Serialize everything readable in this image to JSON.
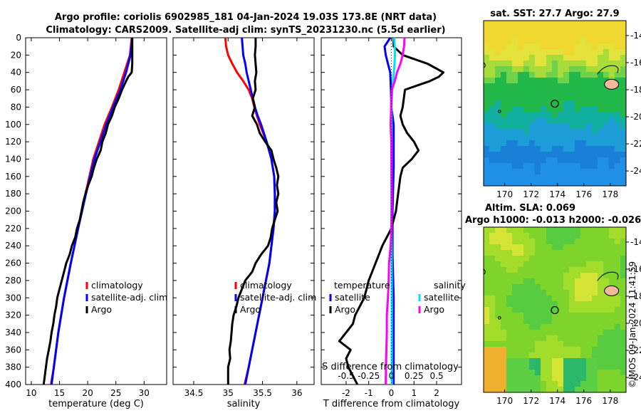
{
  "title_line1": "Argo profile: coriolis 6902985_181 04-Jan-2024 19.03S 173.8E (NRT data)",
  "title_line2": "Climatology: CARS2009. Satellite-adj clim: synTS_20231230.nc (5.5d earlier)",
  "stamp": "©IMOS 09-Jan-2024 11:41:59",
  "colors": {
    "climatology": "#ff0000",
    "satellite": "#0000ff",
    "argo": "#000000",
    "sal_satellite": "#00e0ff",
    "sal_argo": "#ff00ff"
  },
  "chart_data": [
    {
      "type": "line",
      "id": "temp",
      "xlabel": "temperature (deg C)",
      "ylabel": "",
      "xlim": [
        9,
        34
      ],
      "ylim": [
        400,
        0
      ],
      "xticks": [
        "10",
        "15",
        "20",
        "25",
        "30"
      ],
      "xtick_values": [
        10,
        15,
        20,
        25,
        30
      ],
      "yticks": [
        "0",
        "20",
        "40",
        "60",
        "80",
        "100",
        "120",
        "140",
        "160",
        "180",
        "200",
        "220",
        "240",
        "260",
        "280",
        "300",
        "320",
        "340",
        "360",
        "380",
        "400"
      ],
      "ytick_values": [
        0,
        20,
        40,
        60,
        80,
        100,
        120,
        140,
        160,
        180,
        200,
        220,
        240,
        260,
        280,
        300,
        320,
        340,
        360,
        380,
        400
      ],
      "legend": [
        "climatology",
        "satellite-adj. clim",
        "Argo"
      ],
      "series": [
        {
          "name": "climatology",
          "color": "#ff0000",
          "depth": [
            0,
            20,
            40,
            60,
            80,
            100,
            140,
            180,
            220,
            260,
            300,
            340,
            380,
            400
          ],
          "values": [
            27.8,
            27.5,
            26.5,
            25.5,
            24.3,
            23.0,
            21.0,
            19.6,
            18.3,
            17.0,
            15.8,
            14.8,
            14.0,
            13.5
          ]
        },
        {
          "name": "satellite-adj. clim",
          "color": "#0000ff",
          "depth": [
            0,
            20,
            40,
            60,
            80,
            100,
            140,
            180,
            220,
            260,
            300,
            340,
            380,
            400
          ],
          "values": [
            27.9,
            27.6,
            26.8,
            25.8,
            24.5,
            23.3,
            21.2,
            19.7,
            18.3,
            17.0,
            15.8,
            14.8,
            14.0,
            13.6
          ]
        },
        {
          "name": "Argo",
          "color": "#000000",
          "depth": [
            0,
            10,
            20,
            30,
            40,
            45,
            50,
            60,
            70,
            80,
            90,
            100,
            110,
            120,
            130,
            140,
            150,
            160,
            170,
            180,
            190,
            200,
            210,
            220,
            230,
            240,
            250,
            260,
            270,
            280,
            290,
            300,
            310,
            320,
            330,
            340,
            350,
            360,
            370,
            380,
            390,
            400
          ],
          "values": [
            27.9,
            27.9,
            27.9,
            27.9,
            27.8,
            27.2,
            26.8,
            26.1,
            25.5,
            24.8,
            24.3,
            23.6,
            23.2,
            22.6,
            22.3,
            21.6,
            21.1,
            20.7,
            20.1,
            19.6,
            19.2,
            18.9,
            18.6,
            18.1,
            17.8,
            17.2,
            16.8,
            16.2,
            15.8,
            15.4,
            15.0,
            14.6,
            14.4,
            14.1,
            13.9,
            13.6,
            13.4,
            13.1,
            12.8,
            12.6,
            12.4,
            12.2
          ]
        }
      ]
    },
    {
      "type": "line",
      "id": "sal",
      "xlabel": "salinity",
      "ylabel": "",
      "xlim": [
        34.2,
        36.25
      ],
      "ylim": [
        400,
        0
      ],
      "xticks": [
        "34.5",
        "35",
        "35.5",
        "36"
      ],
      "xtick_values": [
        34.5,
        35,
        35.5,
        36
      ],
      "legend": [
        "climatology",
        "satellite-adj. clim",
        "Argo"
      ],
      "series": [
        {
          "name": "climatology",
          "color": "#ff0000",
          "depth": [
            0,
            10,
            20,
            30,
            40,
            50,
            60,
            70,
            80,
            90,
            100,
            120,
            140,
            160,
            180,
            200,
            220,
            260,
            300,
            340,
            380,
            400
          ],
          "values": [
            34.96,
            34.97,
            35.0,
            35.06,
            35.13,
            35.22,
            35.3,
            35.35,
            35.38,
            35.42,
            35.46,
            35.56,
            35.63,
            35.67,
            35.68,
            35.68,
            35.66,
            35.6,
            35.5,
            35.4,
            35.3,
            35.24
          ]
        },
        {
          "name": "satellite-adj. clim",
          "color": "#0000ff",
          "depth": [
            0,
            10,
            20,
            30,
            40,
            50,
            60,
            70,
            80,
            90,
            100,
            120,
            140,
            160,
            180,
            200,
            220,
            260,
            300,
            340,
            380,
            400
          ],
          "values": [
            35.2,
            35.21,
            35.22,
            35.25,
            35.27,
            35.3,
            35.33,
            35.36,
            35.39,
            35.43,
            35.48,
            35.56,
            35.63,
            35.67,
            35.68,
            35.68,
            35.66,
            35.6,
            35.5,
            35.4,
            35.3,
            35.25
          ]
        },
        {
          "name": "Argo",
          "color": "#000000",
          "depth": [
            0,
            10,
            20,
            30,
            40,
            50,
            60,
            70,
            80,
            90,
            100,
            110,
            120,
            130,
            140,
            150,
            160,
            170,
            180,
            190,
            200,
            210,
            220,
            230,
            240,
            250,
            260,
            270,
            280,
            290,
            300,
            310,
            320,
            330,
            340,
            350,
            360,
            370,
            380,
            390,
            400
          ],
          "values": [
            35.4,
            35.4,
            35.39,
            35.4,
            35.41,
            35.39,
            35.4,
            35.36,
            35.39,
            35.35,
            35.42,
            35.46,
            35.54,
            35.63,
            35.66,
            35.7,
            35.73,
            35.71,
            35.73,
            35.7,
            35.72,
            35.68,
            35.64,
            35.62,
            35.58,
            35.48,
            35.4,
            35.35,
            35.25,
            35.2,
            35.15,
            35.12,
            35.08,
            35.06,
            35.05,
            35.04,
            35.02,
            35.03,
            35.0,
            35.0,
            35.0
          ]
        }
      ]
    },
    {
      "type": "line",
      "id": "diff",
      "xlabel": "T difference from climatology",
      "xlabel_top": "S difference from climatology",
      "ylabel": "",
      "xlim": [
        -3.1,
        3.1
      ],
      "ylim": [
        400,
        0
      ],
      "xticks": [
        "-2",
        "-1",
        "0",
        "1",
        "2"
      ],
      "xtick_values": [
        -2,
        -1,
        0,
        1,
        2
      ],
      "xticks_top": [
        "-0.5",
        "-0.25",
        "0",
        "0.25",
        "0.5"
      ],
      "xtick_values_top": [
        -2,
        -1,
        0,
        1,
        2
      ],
      "legend_temperature": {
        "title": "temperature",
        "items": [
          "satellite",
          "Argo"
        ]
      },
      "legend_salinity": {
        "title": "salinity",
        "items": [
          "satellite",
          "Argo"
        ]
      },
      "series": [
        {
          "name": "temperature satellite",
          "color": "#0000ff",
          "depth": [
            0,
            10,
            20,
            30,
            40,
            60,
            80,
            100,
            150,
            200,
            250,
            300,
            350,
            400
          ],
          "values": [
            -0.05,
            -0.3,
            -0.25,
            -0.15,
            -0.05,
            -0.02,
            0.0,
            0.1,
            0.1,
            0.05,
            0.05,
            0.1,
            0.1,
            0.1
          ]
        },
        {
          "name": "temperature Argo",
          "color": "#000000",
          "depth": [
            0,
            10,
            20,
            30,
            40,
            45,
            50,
            60,
            80,
            90,
            100,
            110,
            120,
            130,
            140,
            150,
            160,
            180,
            200,
            220,
            240,
            260,
            280,
            300,
            320,
            330,
            340,
            350,
            360,
            370,
            380,
            390,
            400
          ],
          "values": [
            0.1,
            0.1,
            0.5,
            1.6,
            2.3,
            2.1,
            1.7,
            0.6,
            0.5,
            0.4,
            0.5,
            0.7,
            1.0,
            1.2,
            0.9,
            0.5,
            0.4,
            0.3,
            0.2,
            0.0,
            -0.4,
            -0.7,
            -1.0,
            -1.2,
            -1.6,
            -1.7,
            -2.0,
            -2.3,
            -1.8,
            -2.0,
            -1.9,
            -1.7,
            -1.5
          ]
        },
        {
          "name": "salinity satellite",
          "color": "#00e0ff",
          "depth": [
            0,
            10,
            20,
            30,
            40,
            50,
            60,
            80,
            100,
            150,
            200,
            300,
            400
          ],
          "values": [
            0.12,
            0.15,
            0.16,
            0.14,
            0.11,
            0.07,
            0.04,
            0.01,
            0.0,
            0.0,
            0.0,
            0.02,
            0.02
          ]
        },
        {
          "name": "salinity Argo",
          "color": "#ff00ff",
          "depth": [
            0,
            10,
            20,
            30,
            40,
            50,
            60,
            70,
            80,
            90,
            100,
            110,
            120,
            140,
            160,
            180,
            200,
            220,
            240,
            260,
            280,
            300,
            320,
            340,
            360,
            380,
            400
          ],
          "values": [
            0.58,
            0.56,
            0.5,
            0.4,
            0.25,
            0.15,
            0.02,
            0.0,
            -0.01,
            -0.02,
            -0.03,
            -0.02,
            0.0,
            0.0,
            0.01,
            0.02,
            0.02,
            0.0,
            -0.03,
            -0.1,
            -0.12,
            -0.15,
            -0.2,
            -0.2,
            -0.22,
            -0.24,
            -0.25
          ]
        }
      ]
    },
    {
      "type": "heatmap",
      "id": "sst_map",
      "title": "sat. SST: 27.7 Argo: 27.9",
      "xlim": [
        168.4,
        179.2
      ],
      "ylim": [
        -25.1,
        -12.9
      ],
      "xticks": [
        "170",
        "172",
        "174",
        "176",
        "178"
      ],
      "xtick_values": [
        170,
        172,
        174,
        176,
        178
      ],
      "yticks": [
        "-14",
        "-16",
        "-18",
        "-20",
        "-22",
        "-24"
      ],
      "ytick_values": [
        -14,
        -16,
        -18,
        -20,
        -22,
        -24
      ],
      "marker": {
        "lon": 173.8,
        "lat": -19.03
      }
    },
    {
      "type": "heatmap",
      "id": "sla_map",
      "title_line1": "Altim. SLA: 0.069",
      "title_line2": "Argo h1000: -0.013 h2000: -0.026",
      "xlim": [
        168.4,
        179.2
      ],
      "ylim": [
        -25.1,
        -12.9
      ],
      "xticks": [
        "170",
        "172",
        "174",
        "176",
        "178"
      ],
      "xtick_values": [
        170,
        172,
        174,
        176,
        178
      ],
      "yticks": [
        "-14",
        "-16",
        "-18",
        "-20",
        "-22",
        "-24"
      ],
      "ytick_values": [
        -14,
        -16,
        -18,
        -20,
        -22,
        -24
      ],
      "marker": {
        "lon": 173.8,
        "lat": -19.03
      }
    }
  ]
}
